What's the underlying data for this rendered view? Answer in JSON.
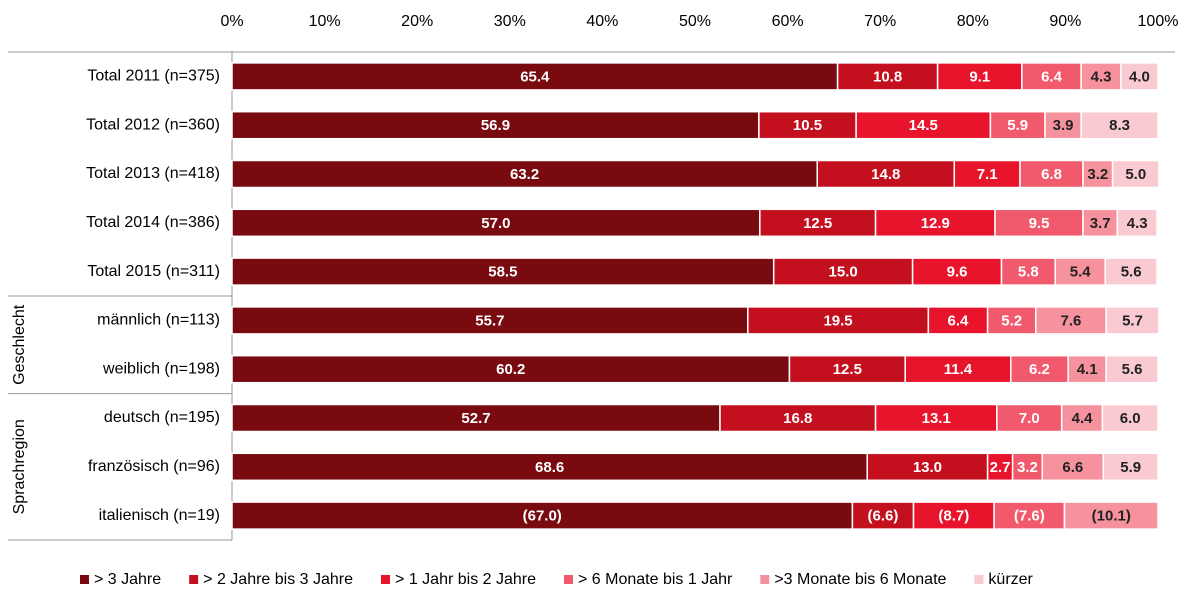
{
  "chart_data": {
    "type": "stacked-bar-horizontal",
    "categories": [
      "Total 2011 (n=375)",
      "Total 2012 (n=360)",
      "Total 2013 (n=418)",
      "Total 2014 (n=386)",
      "Total 2015 (n=311)",
      "männlich (n=113)",
      "weiblich (n=198)",
      "deutsch (n=195)",
      "französisch (n=96)",
      "italienisch (n=19)"
    ],
    "category_groups": [
      null,
      null,
      null,
      null,
      null,
      "Geschlecht",
      "Geschlecht",
      "Sprachregion",
      "Sprachregion",
      "Sprachregion"
    ],
    "xlim": [
      0,
      100
    ],
    "xticks": [
      {
        "value": 0,
        "label": "0%"
      },
      {
        "value": 10,
        "label": "10%"
      },
      {
        "value": 20,
        "label": "20%"
      },
      {
        "value": 30,
        "label": "30%"
      },
      {
        "value": 40,
        "label": "40%"
      },
      {
        "value": 50,
        "label": "50%"
      },
      {
        "value": 60,
        "label": "60%"
      },
      {
        "value": 70,
        "label": "70%"
      },
      {
        "value": 80,
        "label": "80%"
      },
      {
        "value": 90,
        "label": "90%"
      },
      {
        "value": 100,
        "label": "100%"
      }
    ],
    "legend": "bottom",
    "series": [
      {
        "name": "> 3 Jahre",
        "color": "#780a10",
        "values": [
          65.4,
          56.9,
          63.2,
          57.0,
          58.5,
          55.7,
          60.2,
          52.7,
          68.6,
          67.0
        ],
        "value_labels": [
          "65.4",
          "56.9",
          "63.2",
          "57.0",
          "58.5",
          "55.7",
          "60.2",
          "52.7",
          "68.6",
          "(67.0)"
        ]
      },
      {
        "name": "> 2 Jahre bis 3 Jahre",
        "color": "#c4101e",
        "values": [
          10.8,
          10.5,
          14.8,
          12.5,
          15.0,
          19.5,
          12.5,
          16.8,
          13.0,
          6.6
        ],
        "value_labels": [
          "10.8",
          "10.5",
          "14.8",
          "12.5",
          "15.0",
          "19.5",
          "12.5",
          "16.8",
          "13.0",
          "(6.6)"
        ]
      },
      {
        "name": "> 1 Jahr bis 2 Jahre",
        "color": "#e8142c",
        "values": [
          9.1,
          14.5,
          7.1,
          12.9,
          9.6,
          6.4,
          11.4,
          13.1,
          2.7,
          8.7
        ],
        "value_labels": [
          "9.1",
          "14.5",
          "7.1",
          "12.9",
          "9.6",
          "6.4",
          "11.4",
          "13.1",
          "2.7",
          "(8.7)"
        ]
      },
      {
        "name": "> 6 Monate bis 1 Jahr",
        "color": "#f05a6c",
        "values": [
          6.4,
          5.9,
          6.8,
          9.5,
          5.8,
          5.2,
          6.2,
          7.0,
          3.2,
          7.6
        ],
        "value_labels": [
          "6.4",
          "5.9",
          "6.8",
          "9.5",
          "5.8",
          "5.2",
          "6.2",
          "7.0",
          "3.2",
          "(7.6)"
        ]
      },
      {
        "name": ">3 Monate bis 6 Monate",
        "color": "#f5929e",
        "values": [
          4.3,
          3.9,
          3.2,
          3.7,
          5.4,
          7.6,
          4.1,
          4.4,
          6.6,
          10.1
        ],
        "value_labels": [
          "4.3",
          "3.9",
          "3.2",
          "3.7",
          "5.4",
          "7.6",
          "4.1",
          "4.4",
          "6.6",
          "(10.1)"
        ]
      },
      {
        "name": "kürzer",
        "color": "#f9cad1",
        "values": [
          4.0,
          8.3,
          5.0,
          4.3,
          5.6,
          5.7,
          5.6,
          6.0,
          5.9,
          0
        ],
        "value_labels": [
          "4.0",
          "8.3",
          "5.0",
          "4.3",
          "5.6",
          "5.7",
          "5.6",
          "6.0",
          "5.9",
          null
        ]
      }
    ]
  }
}
